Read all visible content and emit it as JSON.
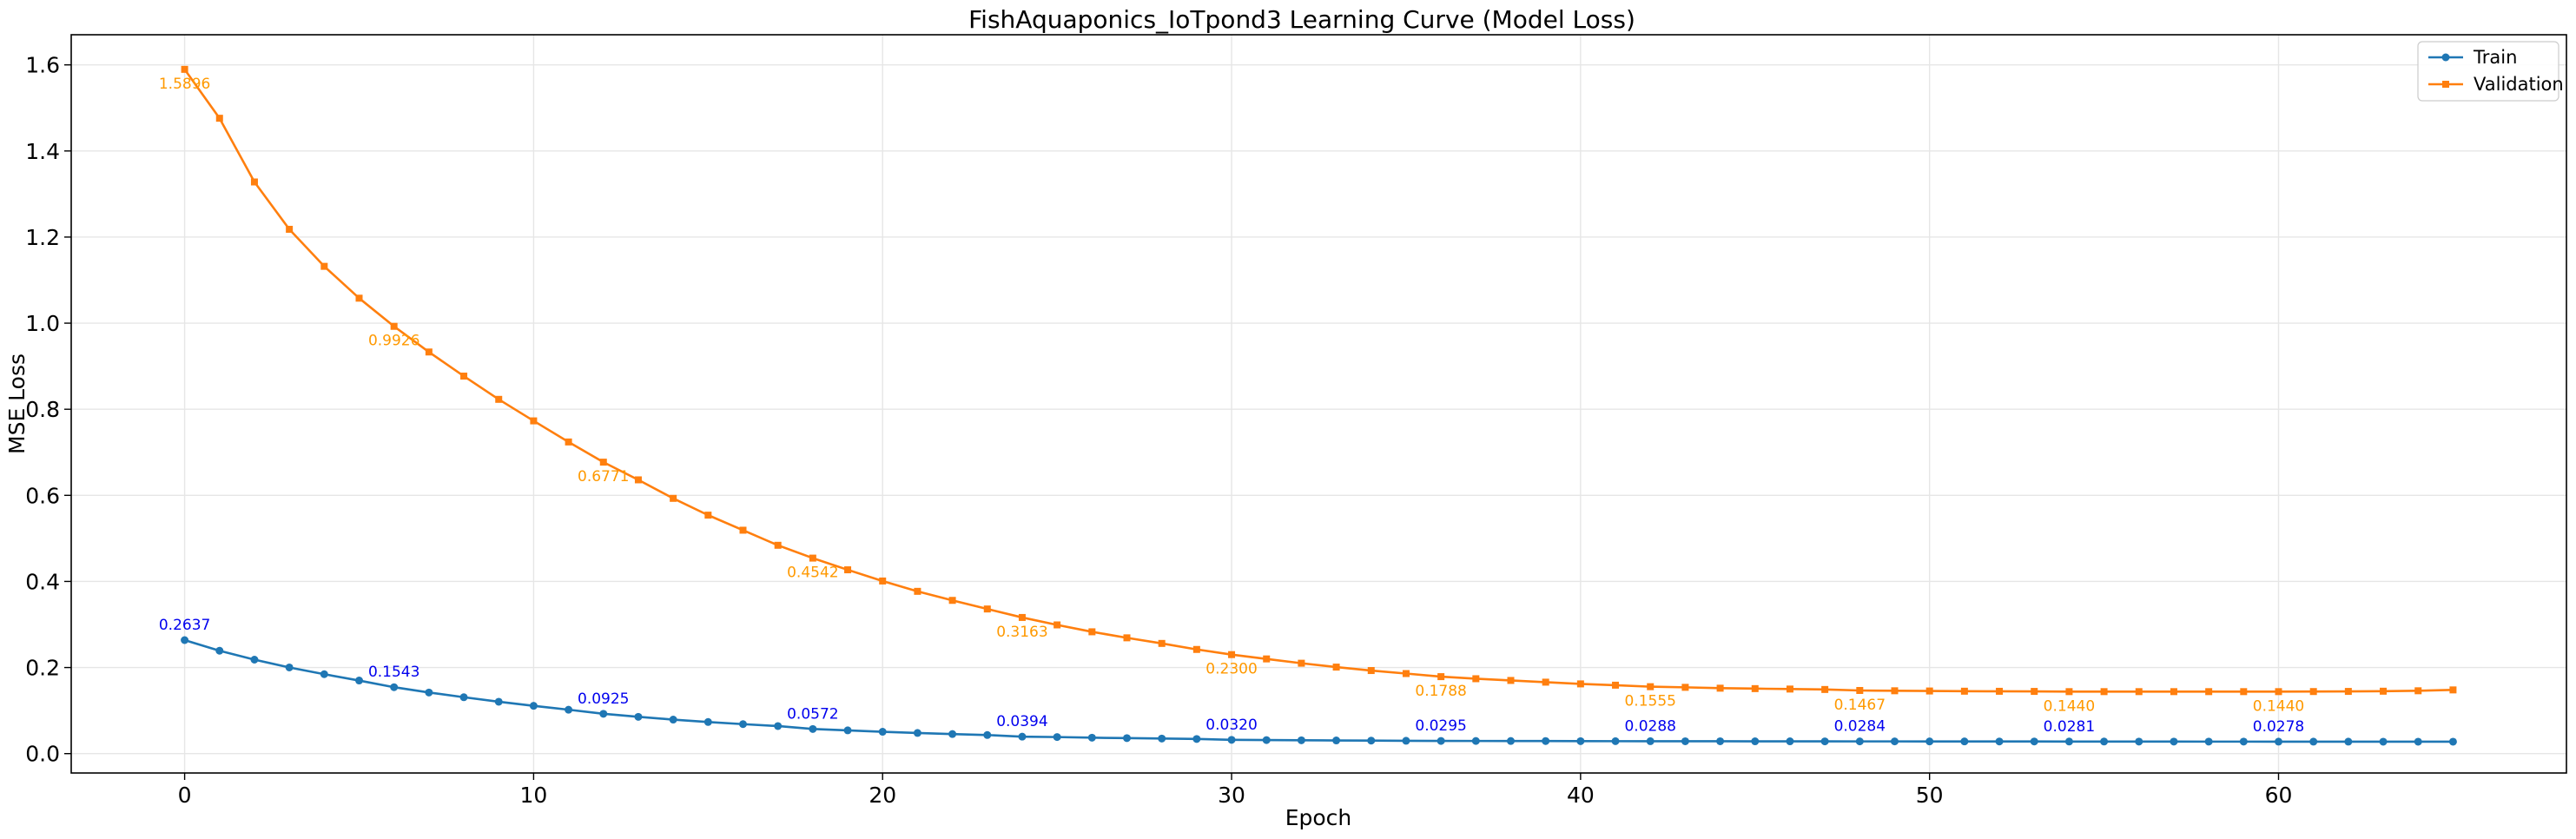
{
  "chart_data": {
    "type": "line",
    "title": "FishAquaponics_IoTpond3 Learning Curve (Model Loss)",
    "xlabel": "Epoch",
    "ylabel": "MSE Loss",
    "xlim": [
      -3.25,
      68.25
    ],
    "ylim": [
      -0.045,
      1.67
    ],
    "xticks": [
      0,
      10,
      20,
      30,
      40,
      50,
      60
    ],
    "yticks": [
      0.0,
      0.2,
      0.4,
      0.6,
      0.8,
      1.0,
      1.2,
      1.4,
      1.6
    ],
    "ytick_labels": [
      "0.0",
      "0.2",
      "0.4",
      "0.6",
      "0.8",
      "1.0",
      "1.2",
      "1.4",
      "1.6"
    ],
    "grid": true,
    "legend_position": "top-right",
    "series": [
      {
        "name": "Train",
        "color": "#1f77b4",
        "marker": "circle",
        "annotation_color": "#0000ee",
        "values": [
          0.2637,
          0.239,
          0.2183,
          0.2002,
          0.1845,
          0.1698,
          0.1543,
          0.142,
          0.131,
          0.1205,
          0.111,
          0.102,
          0.0925,
          0.0855,
          0.079,
          0.0735,
          0.0685,
          0.064,
          0.0572,
          0.054,
          0.0508,
          0.048,
          0.0455,
          0.0432,
          0.0394,
          0.0385,
          0.037,
          0.036,
          0.035,
          0.034,
          0.032,
          0.0315,
          0.031,
          0.0306,
          0.0302,
          0.0298,
          0.0295,
          0.0294,
          0.0293,
          0.0292,
          0.029,
          0.0289,
          0.0288,
          0.0287,
          0.0287,
          0.0286,
          0.0286,
          0.0285,
          0.0284,
          0.0284,
          0.0283,
          0.0283,
          0.0282,
          0.0282,
          0.0281,
          0.0281,
          0.028,
          0.028,
          0.0279,
          0.0279,
          0.0278,
          0.0278,
          0.0278,
          0.0277,
          0.0277,
          0.0277
        ],
        "annotations": [
          {
            "x": 0,
            "label": "0.2637"
          },
          {
            "x": 6,
            "label": "0.1543"
          },
          {
            "x": 12,
            "label": "0.0925"
          },
          {
            "x": 18,
            "label": "0.0572"
          },
          {
            "x": 24,
            "label": "0.0394"
          },
          {
            "x": 30,
            "label": "0.0320"
          },
          {
            "x": 36,
            "label": "0.0295"
          },
          {
            "x": 42,
            "label": "0.0288"
          },
          {
            "x": 48,
            "label": "0.0284"
          },
          {
            "x": 54,
            "label": "0.0281"
          },
          {
            "x": 60,
            "label": "0.0278"
          }
        ]
      },
      {
        "name": "Validation",
        "color": "#ff7f0e",
        "marker": "square",
        "annotation_color": "#ff9900",
        "values": [
          1.5896,
          1.476,
          1.328,
          1.218,
          1.132,
          1.058,
          0.9926,
          0.933,
          0.877,
          0.823,
          0.773,
          0.724,
          0.6771,
          0.636,
          0.593,
          0.554,
          0.519,
          0.484,
          0.4542,
          0.427,
          0.401,
          0.377,
          0.356,
          0.336,
          0.3163,
          0.299,
          0.283,
          0.269,
          0.256,
          0.242,
          0.23,
          0.22,
          0.21,
          0.201,
          0.193,
          0.186,
          0.1788,
          0.174,
          0.17,
          0.166,
          0.162,
          0.159,
          0.1555,
          0.154,
          0.152,
          0.151,
          0.15,
          0.149,
          0.1467,
          0.146,
          0.1455,
          0.145,
          0.1448,
          0.1445,
          0.144,
          0.144,
          0.144,
          0.144,
          0.144,
          0.144,
          0.144,
          0.1442,
          0.1445,
          0.145,
          0.146,
          0.148
        ],
        "annotations": [
          {
            "x": 0,
            "label": "1.5896"
          },
          {
            "x": 6,
            "label": "0.9926"
          },
          {
            "x": 12,
            "label": "0.6771"
          },
          {
            "x": 18,
            "label": "0.4542"
          },
          {
            "x": 24,
            "label": "0.3163"
          },
          {
            "x": 30,
            "label": "0.2300"
          },
          {
            "x": 36,
            "label": "0.1788"
          },
          {
            "x": 42,
            "label": "0.1555"
          },
          {
            "x": 48,
            "label": "0.1467"
          },
          {
            "x": 54,
            "label": "0.1440"
          },
          {
            "x": 60,
            "label": "0.1440"
          }
        ]
      }
    ]
  }
}
